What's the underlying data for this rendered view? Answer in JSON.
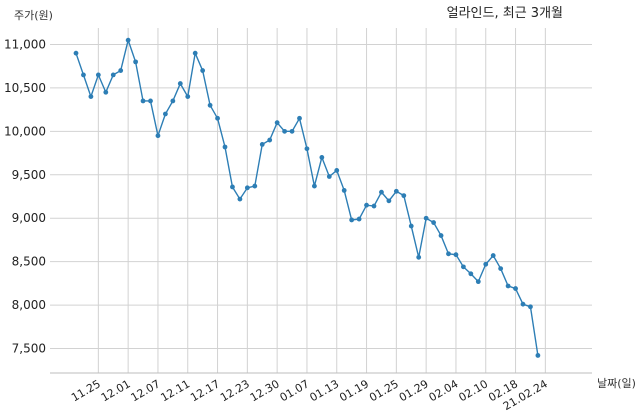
{
  "chart_data": {
    "type": "line",
    "title": "얼라인드, 최근 3개월",
    "ylabel": "주가(원)",
    "xlabel": "날짜(일)",
    "ylim": [
      7250,
      11250
    ],
    "yticks": [
      7500,
      8000,
      8500,
      9000,
      9500,
      10000,
      10500,
      11000
    ],
    "ytick_labels": [
      "7,500",
      "8,000",
      "8,500",
      "9,000",
      "9,500",
      "10,000",
      "10,500",
      "11,000"
    ],
    "xtick_labels": [
      "11.25",
      "12.01",
      "12.07",
      "12.11",
      "12.17",
      "12.23",
      "12.30",
      "01.07",
      "01.13",
      "01.19",
      "01.25",
      "01.29",
      "02.04",
      "02.10",
      "02.18",
      "21.02.24"
    ],
    "xtick_index": [
      3,
      7,
      11,
      15,
      19,
      23,
      27,
      31,
      35,
      39,
      43,
      47,
      51,
      55,
      59,
      63
    ],
    "grid": true,
    "color": "#2d7eb5",
    "values": [
      10900,
      10650,
      10400,
      10650,
      10450,
      10650,
      10700,
      11050,
      10800,
      10350,
      10350,
      9950,
      10200,
      10350,
      10550,
      10400,
      10900,
      10700,
      10300,
      10150,
      9820,
      9360,
      9220,
      9350,
      9370,
      9850,
      9900,
      10100,
      10000,
      10000,
      10150,
      9800,
      9370,
      9700,
      9480,
      9550,
      9320,
      8980,
      8990,
      9150,
      9140,
      9300,
      9200,
      9310,
      9260,
      8910,
      8550,
      9000,
      8950,
      8800,
      8590,
      8580,
      8440,
      8360,
      8270,
      8470,
      8570,
      8420,
      8220,
      8190,
      8010,
      7980,
      7420
    ]
  }
}
